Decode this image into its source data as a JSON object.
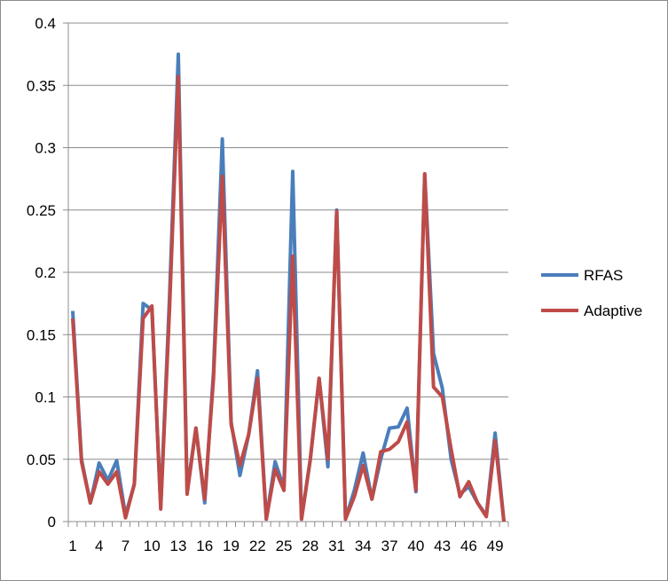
{
  "chart_data": {
    "type": "line",
    "title": "",
    "xlabel": "",
    "ylabel": "",
    "ylim": [
      0,
      0.4
    ],
    "yticks": [
      0,
      0.05,
      0.1,
      0.15,
      0.2,
      0.25,
      0.3,
      0.35,
      0.4
    ],
    "ytick_labels": [
      "0",
      "0.05",
      "0.1",
      "0.15",
      "0.2",
      "0.25",
      "0.3",
      "0.35",
      "0.4"
    ],
    "x": [
      1,
      2,
      3,
      4,
      5,
      6,
      7,
      8,
      9,
      10,
      11,
      12,
      13,
      14,
      15,
      16,
      17,
      18,
      19,
      20,
      21,
      22,
      23,
      24,
      25,
      26,
      27,
      28,
      29,
      30,
      31,
      32,
      33,
      34,
      35,
      36,
      37,
      38,
      39,
      40,
      41,
      42,
      43,
      44,
      45,
      46,
      47,
      48,
      49,
      50
    ],
    "xtick_labels": [
      "1",
      "4",
      "7",
      "10",
      "13",
      "16",
      "19",
      "22",
      "25",
      "28",
      "31",
      "34",
      "37",
      "40",
      "43",
      "46",
      "49"
    ],
    "xtick_positions": [
      1,
      4,
      7,
      10,
      13,
      16,
      19,
      22,
      25,
      28,
      31,
      34,
      37,
      40,
      43,
      46,
      49
    ],
    "grid": true,
    "legend_position": "right",
    "series": [
      {
        "name": "RFAS",
        "color": "#4a7ebb",
        "values": [
          0.169,
          0.05,
          0.015,
          0.047,
          0.033,
          0.049,
          0.005,
          0.03,
          0.175,
          0.17,
          0.012,
          0.18,
          0.375,
          0.025,
          0.075,
          0.015,
          0.12,
          0.307,
          0.08,
          0.037,
          0.07,
          0.121,
          0.002,
          0.048,
          0.027,
          0.281,
          0.002,
          0.05,
          0.115,
          0.044,
          0.25,
          0.002,
          0.025,
          0.055,
          0.018,
          0.05,
          0.075,
          0.076,
          0.091,
          0.024,
          0.279,
          0.135,
          0.107,
          0.05,
          0.022,
          0.028,
          0.015,
          0.005,
          0.071,
          0.0
        ]
      },
      {
        "name": "Adaptive",
        "color": "#be4b48",
        "values": [
          0.163,
          0.048,
          0.015,
          0.04,
          0.03,
          0.04,
          0.003,
          0.03,
          0.163,
          0.173,
          0.01,
          0.17,
          0.357,
          0.022,
          0.075,
          0.018,
          0.115,
          0.277,
          0.078,
          0.045,
          0.07,
          0.115,
          0.002,
          0.042,
          0.025,
          0.213,
          0.002,
          0.05,
          0.115,
          0.05,
          0.249,
          0.002,
          0.02,
          0.045,
          0.018,
          0.056,
          0.058,
          0.064,
          0.08,
          0.025,
          0.279,
          0.108,
          0.1,
          0.058,
          0.02,
          0.032,
          0.015,
          0.004,
          0.065,
          0.0
        ]
      }
    ]
  }
}
